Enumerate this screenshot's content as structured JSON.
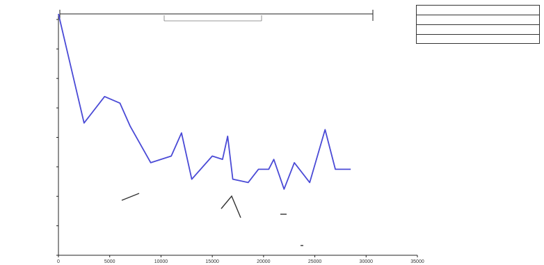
{
  "chart_data": {
    "type": "line",
    "x": [
      0,
      2500,
      4500,
      6000,
      7000,
      9000,
      11000,
      12000,
      13000,
      15000,
      16000,
      16500,
      17000,
      18500,
      19500,
      20500,
      21000,
      22000,
      23000,
      24500,
      26000,
      27000,
      28500
    ],
    "series": [
      {
        "values": [
          0.78,
          0.45,
          0.53,
          0.51,
          0.44,
          0.33,
          0.35,
          0.42,
          0.28,
          0.35,
          0.34,
          0.41,
          0.28,
          0.27,
          0.31,
          0.31,
          0.34,
          0.25,
          0.33,
          0.27,
          0.43,
          0.31,
          0.31
        ]
      }
    ],
    "x_tick_labels": [
      "0",
      "5000",
      "10000",
      "15000",
      "20000",
      "25000",
      "30000",
      "35000"
    ],
    "xlim": [
      0,
      35000
    ],
    "ylim": [
      0.05,
      0.78
    ],
    "grid": false,
    "legend_position": "top-right",
    "colors": {
      "line": "#4a4ad6",
      "axis": "#222222",
      "fragment": "#333333"
    }
  }
}
